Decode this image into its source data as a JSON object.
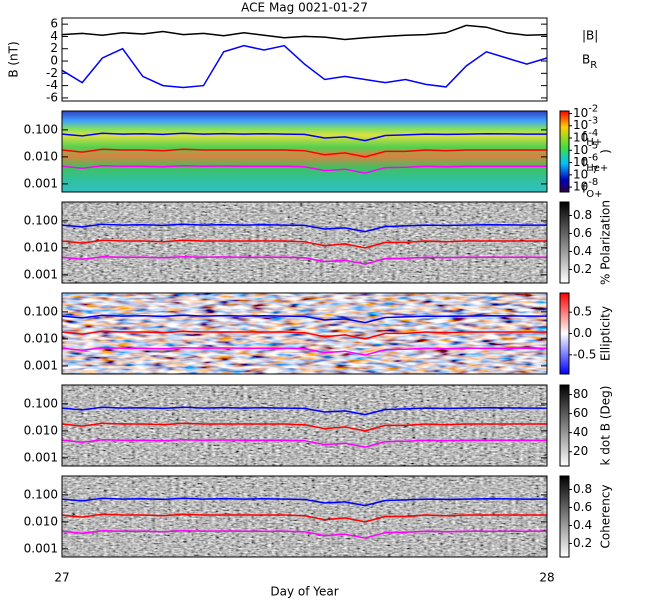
{
  "chart_data": [
    {
      "type": "line",
      "title": "ACE Mag 0021-01-27",
      "y_label": "B (nT)",
      "x": [
        27,
        27.0417,
        27.0833,
        27.125,
        27.1667,
        27.2083,
        27.25,
        27.2917,
        27.3333,
        27.375,
        27.4167,
        27.4583,
        27.5,
        27.5417,
        27.5833,
        27.625,
        27.6667,
        27.7083,
        27.75,
        27.7917,
        27.8333,
        27.875,
        27.9167,
        27.9583,
        28
      ],
      "xlim": [
        27,
        28
      ],
      "ylim": [
        -6.5,
        7
      ],
      "yticks": [
        -6,
        -4,
        -2,
        0,
        2,
        4,
        6
      ],
      "series": [
        {
          "name": "|B|",
          "color": "#000000",
          "values": [
            4.3,
            4.5,
            4.2,
            4.6,
            4.4,
            4.8,
            4.3,
            4.5,
            4.1,
            4.6,
            4.2,
            3.8,
            4.0,
            3.9,
            3.5,
            3.8,
            4.0,
            4.2,
            4.3,
            4.6,
            5.8,
            5.5,
            4.6,
            4.2,
            4.3
          ]
        },
        {
          "name": "B_R",
          "color": "#0000ff",
          "values": [
            -1.5,
            -3.5,
            0.5,
            2.0,
            -2.5,
            -4.0,
            -4.3,
            -4.0,
            1.5,
            2.5,
            1.8,
            2.5,
            -0.5,
            -3.0,
            -2.5,
            -3.0,
            -3.5,
            -3.0,
            -3.8,
            -4.2,
            -0.8,
            1.5,
            0.5,
            -0.5,
            0.5
          ]
        }
      ]
    },
    {
      "type": "line",
      "log_y": true,
      "background": "spectrum",
      "cbar_label": ")",
      "x": [
        27,
        27.0417,
        27.0833,
        27.125,
        27.1667,
        27.2083,
        27.25,
        27.2917,
        27.3333,
        27.375,
        27.4167,
        27.4583,
        27.5,
        27.5417,
        27.5833,
        27.625,
        27.6667,
        27.7083,
        27.75,
        27.7917,
        27.8333,
        27.875,
        27.9167,
        27.9583,
        28
      ],
      "xlim": [
        27,
        28
      ],
      "ylim": [
        0.0005,
        0.5
      ],
      "yticks": [
        {
          "value": 0.1,
          "label": "0.100"
        },
        {
          "value": 0.01,
          "label": "0.010"
        },
        {
          "value": 0.001,
          "label": "0.001"
        }
      ],
      "cbar_lim": [
        -8.4,
        -1.8
      ],
      "cbar_ticks": [
        {
          "value": -2,
          "label": "10^-2"
        },
        {
          "value": -3,
          "label": "10^-3"
        },
        {
          "value": -4,
          "label": "10^-4"
        },
        {
          "value": -5,
          "label": "10^-5"
        },
        {
          "value": -6,
          "label": "10^-6"
        },
        {
          "value": -7,
          "label": "10^-7"
        },
        {
          "value": -8,
          "label": "10^-8"
        }
      ],
      "series": [
        {
          "name": "f_H+",
          "color": "#0000ff",
          "values": [
            0.07,
            0.06,
            0.075,
            0.07,
            0.072,
            0.068,
            0.075,
            0.07,
            0.073,
            0.07,
            0.072,
            0.07,
            0.068,
            0.05,
            0.055,
            0.04,
            0.062,
            0.065,
            0.07,
            0.068,
            0.07,
            0.072,
            0.071,
            0.07,
            0.07
          ]
        },
        {
          "name": "f_He+",
          "color": "#ff0000",
          "values": [
            0.018,
            0.015,
            0.019,
            0.018,
            0.018,
            0.017,
            0.019,
            0.018,
            0.018,
            0.018,
            0.018,
            0.018,
            0.017,
            0.012,
            0.014,
            0.01,
            0.016,
            0.016,
            0.018,
            0.017,
            0.018,
            0.018,
            0.018,
            0.018,
            0.018
          ]
        },
        {
          "name": "f_O+",
          "color": "#ff00ff",
          "values": [
            0.0045,
            0.0038,
            0.0047,
            0.0045,
            0.0045,
            0.0043,
            0.0047,
            0.0045,
            0.0046,
            0.0045,
            0.0045,
            0.0045,
            0.0043,
            0.0031,
            0.0035,
            0.0025,
            0.004,
            0.0041,
            0.0045,
            0.0043,
            0.0045,
            0.0045,
            0.0045,
            0.0045,
            0.0045
          ]
        }
      ]
    },
    {
      "type": "line",
      "log_y": true,
      "background": "gray",
      "cbar_label": "% Polarization",
      "x": [
        27,
        27.0417,
        27.0833,
        27.125,
        27.1667,
        27.2083,
        27.25,
        27.2917,
        27.3333,
        27.375,
        27.4167,
        27.4583,
        27.5,
        27.5417,
        27.5833,
        27.625,
        27.6667,
        27.7083,
        27.75,
        27.7917,
        27.8333,
        27.875,
        27.9167,
        27.9583,
        28
      ],
      "xlim": [
        27,
        28
      ],
      "ylim": [
        0.0005,
        0.5
      ],
      "yticks": [
        {
          "value": 0.1,
          "label": "0.100"
        },
        {
          "value": 0.01,
          "label": "0.010"
        },
        {
          "value": 0.001,
          "label": "0.001"
        }
      ],
      "cbar_lim": [
        0.05,
        0.95
      ],
      "cbar_ticks": [
        0.2,
        0.4,
        0.6,
        0.8
      ],
      "series": [
        {
          "color": "#0000ff",
          "values": [
            0.07,
            0.06,
            0.075,
            0.07,
            0.072,
            0.068,
            0.075,
            0.07,
            0.073,
            0.07,
            0.072,
            0.07,
            0.068,
            0.05,
            0.055,
            0.04,
            0.062,
            0.065,
            0.07,
            0.068,
            0.07,
            0.072,
            0.071,
            0.07,
            0.07
          ]
        },
        {
          "color": "#ff0000",
          "values": [
            0.018,
            0.015,
            0.019,
            0.018,
            0.018,
            0.017,
            0.019,
            0.018,
            0.018,
            0.018,
            0.018,
            0.018,
            0.017,
            0.012,
            0.014,
            0.01,
            0.016,
            0.016,
            0.018,
            0.017,
            0.018,
            0.018,
            0.018,
            0.018,
            0.018
          ]
        },
        {
          "color": "#ff00ff",
          "values": [
            0.0045,
            0.0038,
            0.0047,
            0.0045,
            0.0045,
            0.0043,
            0.0047,
            0.0045,
            0.0046,
            0.0045,
            0.0045,
            0.0045,
            0.0043,
            0.0031,
            0.0035,
            0.0025,
            0.004,
            0.0041,
            0.0045,
            0.0043,
            0.0045,
            0.0045,
            0.0045,
            0.0045,
            0.0045
          ]
        }
      ]
    },
    {
      "type": "line",
      "log_y": true,
      "background": "redblue",
      "cbar_label": "Ellipticity",
      "x": [
        27,
        27.0417,
        27.0833,
        27.125,
        27.1667,
        27.2083,
        27.25,
        27.2917,
        27.3333,
        27.375,
        27.4167,
        27.4583,
        27.5,
        27.5417,
        27.5833,
        27.625,
        27.6667,
        27.7083,
        27.75,
        27.7917,
        27.8333,
        27.875,
        27.9167,
        27.9583,
        28
      ],
      "xlim": [
        27,
        28
      ],
      "ylim": [
        0.0005,
        0.5
      ],
      "yticks": [
        {
          "value": 0.1,
          "label": "0.100"
        },
        {
          "value": 0.01,
          "label": "0.010"
        },
        {
          "value": 0.001,
          "label": "0.001"
        }
      ],
      "cbar_lim": [
        -0.95,
        0.95
      ],
      "cbar_ticks": [
        {
          "value": 0.5,
          "label": "0.5"
        },
        {
          "value": 0,
          "label": "0.0"
        },
        {
          "value": -0.5,
          "label": "-0.5"
        }
      ],
      "series": [
        {
          "color": "#0000ff",
          "values": [
            0.07,
            0.06,
            0.075,
            0.07,
            0.072,
            0.068,
            0.075,
            0.07,
            0.073,
            0.07,
            0.072,
            0.07,
            0.068,
            0.05,
            0.055,
            0.04,
            0.062,
            0.065,
            0.07,
            0.068,
            0.07,
            0.072,
            0.071,
            0.07,
            0.07
          ]
        },
        {
          "color": "#ff0000",
          "values": [
            0.018,
            0.015,
            0.019,
            0.018,
            0.018,
            0.017,
            0.019,
            0.018,
            0.018,
            0.018,
            0.018,
            0.018,
            0.017,
            0.012,
            0.014,
            0.01,
            0.016,
            0.016,
            0.018,
            0.017,
            0.018,
            0.018,
            0.018,
            0.018,
            0.018
          ]
        },
        {
          "color": "#ff00ff",
          "values": [
            0.0045,
            0.0038,
            0.0047,
            0.0045,
            0.0045,
            0.0043,
            0.0047,
            0.0045,
            0.0046,
            0.0045,
            0.0045,
            0.0045,
            0.0043,
            0.0031,
            0.0035,
            0.0025,
            0.004,
            0.0041,
            0.0045,
            0.0043,
            0.0045,
            0.0045,
            0.0045,
            0.0045,
            0.0045
          ]
        }
      ]
    },
    {
      "type": "line",
      "log_y": true,
      "background": "gray",
      "cbar_label": "k dot B (Deg)",
      "x": [
        27,
        27.0417,
        27.0833,
        27.125,
        27.1667,
        27.2083,
        27.25,
        27.2917,
        27.3333,
        27.375,
        27.4167,
        27.4583,
        27.5,
        27.5417,
        27.5833,
        27.625,
        27.6667,
        27.7083,
        27.75,
        27.7917,
        27.8333,
        27.875,
        27.9167,
        27.9583,
        28
      ],
      "xlim": [
        27,
        28
      ],
      "ylim": [
        0.0005,
        0.5
      ],
      "yticks": [
        {
          "value": 0.1,
          "label": "0.100"
        },
        {
          "value": 0.01,
          "label": "0.010"
        },
        {
          "value": 0.001,
          "label": "0.001"
        }
      ],
      "cbar_lim": [
        5,
        90
      ],
      "cbar_ticks": [
        20,
        40,
        60,
        80
      ],
      "series": [
        {
          "color": "#0000ff",
          "values": [
            0.07,
            0.06,
            0.075,
            0.07,
            0.072,
            0.068,
            0.075,
            0.07,
            0.073,
            0.07,
            0.072,
            0.07,
            0.068,
            0.05,
            0.055,
            0.04,
            0.062,
            0.065,
            0.07,
            0.068,
            0.07,
            0.072,
            0.071,
            0.07,
            0.07
          ]
        },
        {
          "color": "#ff0000",
          "values": [
            0.018,
            0.015,
            0.019,
            0.018,
            0.018,
            0.017,
            0.019,
            0.018,
            0.018,
            0.018,
            0.018,
            0.018,
            0.017,
            0.012,
            0.014,
            0.01,
            0.016,
            0.016,
            0.018,
            0.017,
            0.018,
            0.018,
            0.018,
            0.018,
            0.018
          ]
        },
        {
          "color": "#ff00ff",
          "values": [
            0.0045,
            0.0038,
            0.0047,
            0.0045,
            0.0045,
            0.0043,
            0.0047,
            0.0045,
            0.0046,
            0.0045,
            0.0045,
            0.0045,
            0.0043,
            0.0031,
            0.0035,
            0.0025,
            0.004,
            0.0041,
            0.0045,
            0.0043,
            0.0045,
            0.0045,
            0.0045,
            0.0045,
            0.0045
          ]
        }
      ]
    },
    {
      "type": "line",
      "log_y": true,
      "background": "gray",
      "cbar_label": "Coherency",
      "x_label": "Day of Year",
      "xticks": [
        27,
        28
      ],
      "x": [
        27,
        27.0417,
        27.0833,
        27.125,
        27.1667,
        27.2083,
        27.25,
        27.2917,
        27.3333,
        27.375,
        27.4167,
        27.4583,
        27.5,
        27.5417,
        27.5833,
        27.625,
        27.6667,
        27.7083,
        27.75,
        27.7917,
        27.8333,
        27.875,
        27.9167,
        27.9583,
        28
      ],
      "xlim": [
        27,
        28
      ],
      "ylim": [
        0.0005,
        0.5
      ],
      "yticks": [
        {
          "value": 0.1,
          "label": "0.100"
        },
        {
          "value": 0.01,
          "label": "0.010"
        },
        {
          "value": 0.001,
          "label": "0.001"
        }
      ],
      "cbar_lim": [
        0.05,
        0.95
      ],
      "cbar_ticks": [
        0.2,
        0.4,
        0.6,
        0.8
      ],
      "series": [
        {
          "color": "#0000ff",
          "values": [
            0.07,
            0.06,
            0.075,
            0.07,
            0.072,
            0.068,
            0.075,
            0.07,
            0.073,
            0.07,
            0.072,
            0.07,
            0.068,
            0.05,
            0.055,
            0.04,
            0.062,
            0.065,
            0.07,
            0.068,
            0.07,
            0.072,
            0.071,
            0.07,
            0.07
          ]
        },
        {
          "color": "#ff0000",
          "values": [
            0.018,
            0.015,
            0.019,
            0.018,
            0.018,
            0.017,
            0.019,
            0.018,
            0.018,
            0.018,
            0.018,
            0.018,
            0.017,
            0.012,
            0.014,
            0.01,
            0.016,
            0.016,
            0.018,
            0.017,
            0.018,
            0.018,
            0.018,
            0.018,
            0.018
          ]
        },
        {
          "color": "#ff00ff",
          "values": [
            0.0045,
            0.0038,
            0.0047,
            0.0045,
            0.0045,
            0.0043,
            0.0047,
            0.0045,
            0.0046,
            0.0045,
            0.0045,
            0.0045,
            0.0043,
            0.0031,
            0.0035,
            0.0025,
            0.004,
            0.0041,
            0.0045,
            0.0043,
            0.0045,
            0.0045,
            0.0045,
            0.0045,
            0.0045
          ]
        }
      ]
    }
  ]
}
